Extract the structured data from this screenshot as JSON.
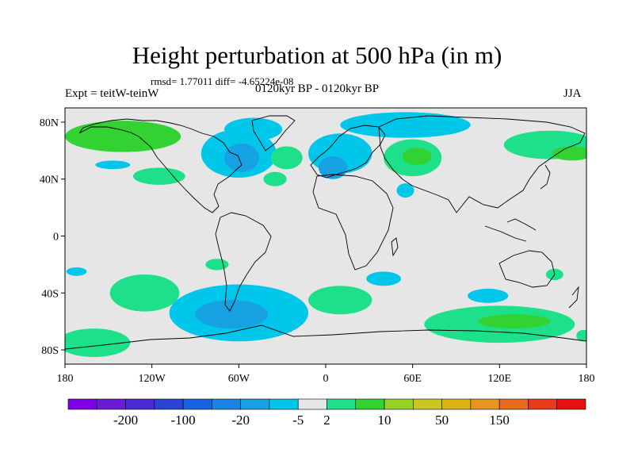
{
  "title": "Height perturbation at 500 hPa (in m)",
  "stats": "rmsd= 1.77011 diff= -4.65224e-08",
  "experiment": "Expt = teitW-teinW",
  "period": "0120kyr BP - 0120kyr BP",
  "season": "JJA",
  "colors": {
    "background": "#e6e6e6",
    "coast": "#000000",
    "palette": [
      "#7d00e6",
      "#6a1bd6",
      "#4b2ad6",
      "#2b43d6",
      "#1862e2",
      "#1a84e6",
      "#16a2e2",
      "#00c6ea",
      "#e6e6e6",
      "#1ee08a",
      "#33d233",
      "#96d224",
      "#c8c81e",
      "#dcb414",
      "#e6961e",
      "#ea6a1e",
      "#ea3a1e",
      "#e80f0f"
    ]
  },
  "chart_data": {
    "type": "heatmap",
    "xlabel": "",
    "ylabel": "",
    "x_range": [
      -180,
      180
    ],
    "y_range": [
      -90,
      90
    ],
    "x_ticks": [
      "180",
      "120W",
      "60W",
      "0",
      "60E",
      "120E",
      "180"
    ],
    "y_ticks": [
      "80N",
      "40N",
      "0",
      "40S",
      "80S"
    ],
    "colorbar_labels": [
      "-200",
      "-100",
      "-20",
      "-5",
      "2",
      "10",
      "50",
      "150"
    ],
    "regions": [
      {
        "lon": -140,
        "lat": 70,
        "rx": 40,
        "ry": 11,
        "level": 10
      },
      {
        "lon": -142,
        "lat": 74,
        "rx": 14,
        "ry": 4,
        "level": 20
      },
      {
        "lon": -147,
        "lat": 50,
        "rx": 12,
        "ry": 3,
        "level": -5
      },
      {
        "lon": -115,
        "lat": 42,
        "rx": 18,
        "ry": 6,
        "level": 5
      },
      {
        "lon": -60,
        "lat": 58,
        "rx": 26,
        "ry": 17,
        "level": -5
      },
      {
        "lon": -58,
        "lat": 55,
        "rx": 12,
        "ry": 10,
        "level": -10
      },
      {
        "lon": -50,
        "lat": 75,
        "rx": 20,
        "ry": 8,
        "level": -5
      },
      {
        "lon": -27,
        "lat": 55,
        "rx": 11,
        "ry": 8,
        "level": 5
      },
      {
        "lon": -35,
        "lat": 40,
        "rx": 8,
        "ry": 5,
        "level": 5
      },
      {
        "lon": 10,
        "lat": 58,
        "rx": 22,
        "ry": 14,
        "level": -5
      },
      {
        "lon": 5,
        "lat": 48,
        "rx": 10,
        "ry": 8,
        "level": -10
      },
      {
        "lon": 55,
        "lat": 78,
        "rx": 45,
        "ry": 9,
        "level": -5
      },
      {
        "lon": 60,
        "lat": 55,
        "rx": 20,
        "ry": 13,
        "level": 5
      },
      {
        "lon": 63,
        "lat": 56,
        "rx": 10,
        "ry": 6,
        "level": 10
      },
      {
        "lon": 55,
        "lat": 32,
        "rx": 6,
        "ry": 5,
        "level": -5
      },
      {
        "lon": 155,
        "lat": 64,
        "rx": 32,
        "ry": 10,
        "level": 5
      },
      {
        "lon": 170,
        "lat": 58,
        "rx": 14,
        "ry": 5,
        "level": 10
      },
      {
        "lon": -75,
        "lat": -20,
        "rx": 8,
        "ry": 4,
        "level": 5
      },
      {
        "lon": -172,
        "lat": -25,
        "rx": 7,
        "ry": 3,
        "level": -5
      },
      {
        "lon": -125,
        "lat": -40,
        "rx": 24,
        "ry": 13,
        "level": 5
      },
      {
        "lon": -60,
        "lat": -54,
        "rx": 48,
        "ry": 20,
        "level": -5
      },
      {
        "lon": -65,
        "lat": -55,
        "rx": 25,
        "ry": 10,
        "level": -10
      },
      {
        "lon": -160,
        "lat": -75,
        "rx": 25,
        "ry": 10,
        "level": 5
      },
      {
        "lon": 10,
        "lat": -45,
        "rx": 22,
        "ry": 10,
        "level": 5
      },
      {
        "lon": 40,
        "lat": -30,
        "rx": 12,
        "ry": 5,
        "level": -5
      },
      {
        "lon": 112,
        "lat": -42,
        "rx": 14,
        "ry": 5,
        "level": -5
      },
      {
        "lon": 120,
        "lat": -62,
        "rx": 52,
        "ry": 13,
        "level": 5
      },
      {
        "lon": 130,
        "lat": -60,
        "rx": 25,
        "ry": 5,
        "level": 10
      },
      {
        "lon": 158,
        "lat": -27,
        "rx": 6,
        "ry": 4,
        "level": 5
      },
      {
        "lon": 178,
        "lat": -70,
        "rx": 5,
        "ry": 4,
        "level": 5
      }
    ]
  }
}
